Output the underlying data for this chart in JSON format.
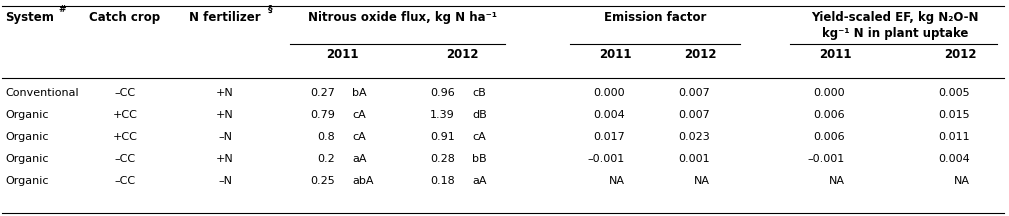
{
  "rows": [
    [
      "Conventional",
      "–CC",
      "+N",
      "0.27",
      "bA",
      "0.96",
      "cB",
      "0.000",
      "0.007",
      "0.000",
      "0.005"
    ],
    [
      "Organic",
      "+CC",
      "+N",
      "0.79",
      "cA",
      "1.39",
      "dB",
      "0.004",
      "0.007",
      "0.006",
      "0.015"
    ],
    [
      "Organic",
      "+CC",
      "–N",
      "0.8",
      "cA",
      "0.91",
      "cA",
      "0.017",
      "0.023",
      "0.006",
      "0.011"
    ],
    [
      "Organic",
      "–CC",
      "+N",
      "0.2",
      "aA",
      "0.28",
      "bB",
      "–0.001",
      "0.001",
      "–0.001",
      "0.004"
    ],
    [
      "Organic",
      "–CC",
      "–N",
      "0.25",
      "abA",
      "0.18",
      "aA",
      "NA",
      "NA",
      "NA",
      "NA"
    ]
  ],
  "background_color": "#ffffff",
  "line_color": "#000000",
  "text_color": "#000000",
  "font_size": 8.0,
  "header_font_size": 8.5,
  "fig_width": 10.09,
  "fig_height": 2.16,
  "dpi": 100
}
